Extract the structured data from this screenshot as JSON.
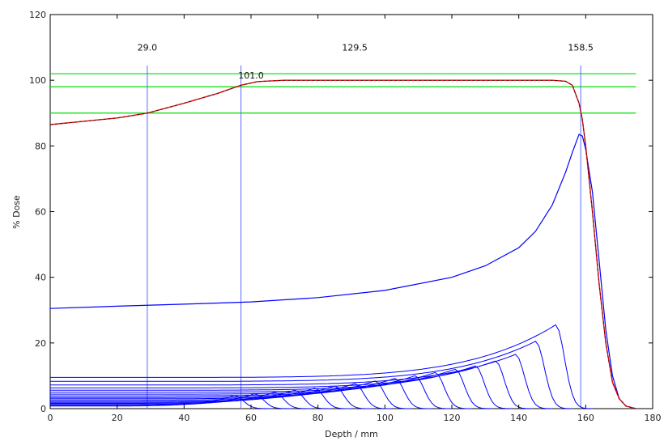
{
  "chart_data": {
    "type": "line",
    "title": "",
    "xlabel": "Depth / mm",
    "ylabel": "% Dose",
    "xlim": [
      0,
      180
    ],
    "ylim": [
      0,
      120
    ],
    "xticks": [
      0,
      20,
      40,
      60,
      80,
      100,
      120,
      140,
      160,
      180
    ],
    "yticks": [
      0,
      20,
      40,
      60,
      80,
      100,
      120
    ],
    "grid": false,
    "legend": "none",
    "colors": {
      "sobp": "#ff0000",
      "sobp_overlay": "#222222",
      "pristine": "#0000ff",
      "markers": "#5b6cff",
      "levels": "#00dd00"
    },
    "reference_levels": [
      90,
      98,
      102
    ],
    "vertical_markers": [
      {
        "x": 29.0,
        "label": "29.0"
      },
      {
        "x": 57.0,
        "label": ""
      },
      {
        "x": 158.5,
        "label": "158.5"
      }
    ],
    "annotations": [
      {
        "text": "129.5",
        "x": 91,
        "y": 109
      },
      {
        "text": "101.0",
        "x": 60,
        "y": 100.5
      }
    ],
    "sobp_curve": {
      "x": [
        0,
        10,
        20,
        29,
        40,
        50,
        57,
        62,
        70,
        80,
        100,
        120,
        140,
        150,
        154,
        156,
        158,
        159,
        160,
        162,
        164,
        166,
        168,
        170,
        172,
        175
      ],
      "y": [
        86.5,
        87.5,
        88.5,
        90,
        93,
        96,
        98.5,
        99.6,
        100,
        100,
        100,
        100,
        100,
        100,
        99.7,
        98.5,
        93,
        88,
        80,
        60,
        38,
        20,
        8,
        3,
        0.8,
        0
      ]
    },
    "pristine_main": {
      "x": [
        0,
        20,
        40,
        60,
        80,
        100,
        120,
        130,
        140,
        145,
        150,
        154,
        156,
        158,
        159,
        160,
        162,
        164,
        166,
        168,
        170,
        172,
        175
      ],
      "y": [
        30.5,
        31.2,
        31.8,
        32.5,
        33.8,
        36,
        40,
        43.5,
        49,
        54,
        62,
        72,
        78,
        83.5,
        83,
        79,
        66,
        45,
        24,
        10,
        3,
        0.8,
        0
      ]
    },
    "pristine_small": [
      {
        "peak_x": 151,
        "peak": 25.5,
        "entrance": 9.5
      },
      {
        "peak_x": 145,
        "peak": 20.5,
        "entrance": 8.3
      },
      {
        "peak_x": 139,
        "peak": 16.5,
        "entrance": 7.2
      },
      {
        "peak_x": 133,
        "peak": 14.5,
        "entrance": 6.3
      },
      {
        "peak_x": 127,
        "peak": 13.0,
        "entrance": 5.6
      },
      {
        "peak_x": 121,
        "peak": 12.0,
        "entrance": 5.0
      },
      {
        "peak_x": 115,
        "peak": 11.0,
        "entrance": 4.4
      },
      {
        "peak_x": 109,
        "peak": 10.0,
        "entrance": 3.9
      },
      {
        "peak_x": 103,
        "peak": 9.2,
        "entrance": 3.4
      },
      {
        "peak_x": 97,
        "peak": 8.4,
        "entrance": 3.0
      },
      {
        "peak_x": 91,
        "peak": 7.6,
        "entrance": 2.6
      },
      {
        "peak_x": 85,
        "peak": 6.9,
        "entrance": 2.2
      },
      {
        "peak_x": 79,
        "peak": 6.2,
        "entrance": 1.9
      },
      {
        "peak_x": 73,
        "peak": 5.6,
        "entrance": 1.6
      },
      {
        "peak_x": 67,
        "peak": 5.0,
        "entrance": 1.3
      },
      {
        "peak_x": 61,
        "peak": 4.5,
        "entrance": 1.0
      },
      {
        "peak_x": 55,
        "peak": 4.0,
        "entrance": 0.8
      }
    ]
  }
}
